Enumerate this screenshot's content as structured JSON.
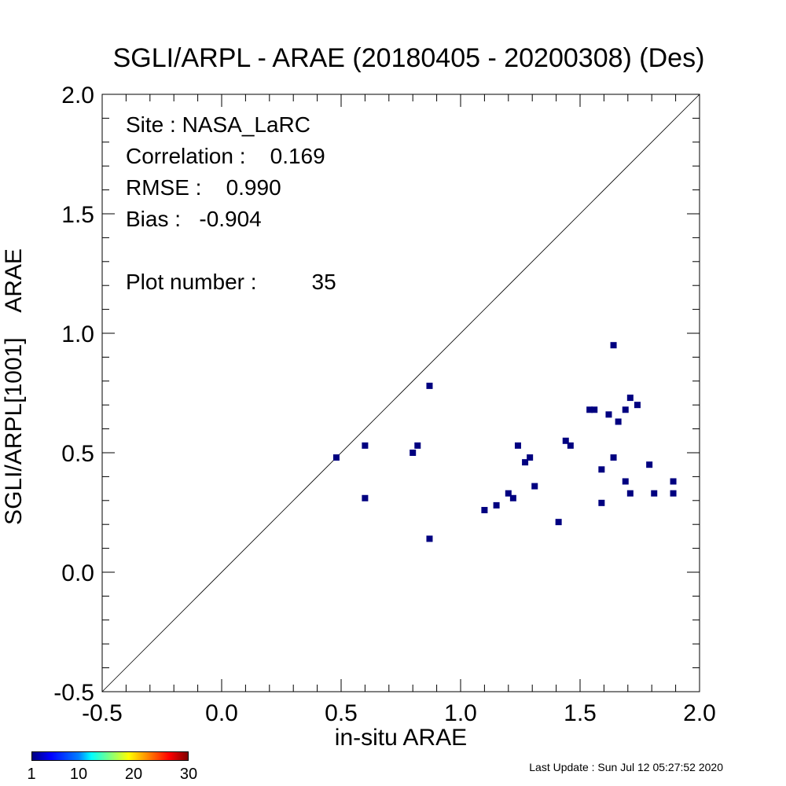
{
  "title": "SGLI/ARPL - ARAE (20180405 - 20200308) (Des)",
  "stats": {
    "site": "Site : NASA_LaRC",
    "correlation": "Correlation :    0.169",
    "rmse": "RMSE :    0.990",
    "bias": "Bias :   -0.904",
    "plot_number": "Plot number :         35"
  },
  "colorbar": {
    "ticks": [
      "1",
      "10",
      "20",
      "30"
    ],
    "colors": [
      "#000080",
      "#0000ff",
      "#00ffff",
      "#ffff00",
      "#ff0000",
      "#800000"
    ]
  },
  "last_update": "Last Update : Sun Jul 12 05:27:52 2020",
  "chart_data": {
    "type": "scatter",
    "title": "SGLI/ARPL - ARAE (20180405 - 20200308) (Des)",
    "xlabel": "in-situ ARAE",
    "ylabel": "SGLI/ARPL[1001]    ARAE",
    "xlim": [
      -0.5,
      2.0
    ],
    "ylim": [
      -0.5,
      2.0
    ],
    "x_ticks": [
      "-0.5",
      "0.0",
      "0.5",
      "1.0",
      "1.5",
      "2.0"
    ],
    "y_ticks": [
      "-0.5",
      "0.0",
      "0.5",
      "1.0",
      "1.5",
      "2.0"
    ],
    "reference_line": "1:1",
    "marker_color": "#000080",
    "points": [
      [
        0.48,
        0.48
      ],
      [
        0.6,
        0.53
      ],
      [
        0.6,
        0.31
      ],
      [
        0.8,
        0.5
      ],
      [
        0.82,
        0.53
      ],
      [
        0.87,
        0.78
      ],
      [
        0.87,
        0.14
      ],
      [
        1.1,
        0.26
      ],
      [
        1.15,
        0.28
      ],
      [
        1.2,
        0.33
      ],
      [
        1.22,
        0.31
      ],
      [
        1.24,
        0.53
      ],
      [
        1.27,
        0.46
      ],
      [
        1.29,
        0.48
      ],
      [
        1.31,
        0.36
      ],
      [
        1.41,
        0.21
      ],
      [
        1.44,
        0.55
      ],
      [
        1.46,
        0.53
      ],
      [
        1.54,
        0.68
      ],
      [
        1.56,
        0.68
      ],
      [
        1.59,
        0.43
      ],
      [
        1.59,
        0.29
      ],
      [
        1.62,
        0.66
      ],
      [
        1.64,
        0.95
      ],
      [
        1.64,
        0.48
      ],
      [
        1.66,
        0.63
      ],
      [
        1.69,
        0.68
      ],
      [
        1.69,
        0.38
      ],
      [
        1.71,
        0.73
      ],
      [
        1.71,
        0.33
      ],
      [
        1.74,
        0.7
      ],
      [
        1.79,
        0.45
      ],
      [
        1.81,
        0.33
      ],
      [
        1.89,
        0.38
      ],
      [
        1.89,
        0.33
      ]
    ]
  }
}
